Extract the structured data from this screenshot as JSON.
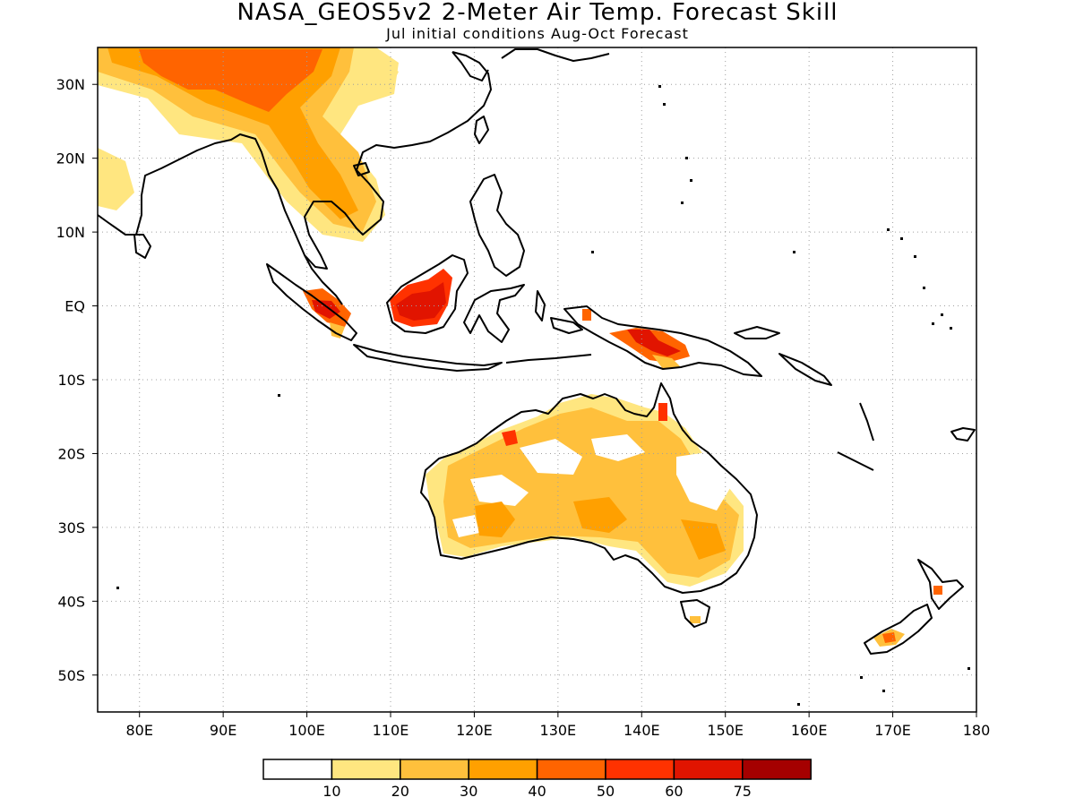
{
  "title": "NASA_GEOS5v2 2-Meter Air Temp. Forecast Skill",
  "subtitle": "Jul initial conditions  Aug-Oct Forecast",
  "map": {
    "lon_range": [
      75,
      180
    ],
    "lat_range": [
      -55,
      35
    ],
    "lon_ticks": [
      {
        "value": 80,
        "label": "80E"
      },
      {
        "value": 90,
        "label": "90E"
      },
      {
        "value": 100,
        "label": "100E"
      },
      {
        "value": 110,
        "label": "110E"
      },
      {
        "value": 120,
        "label": "120E"
      },
      {
        "value": 130,
        "label": "130E"
      },
      {
        "value": 140,
        "label": "140E"
      },
      {
        "value": 150,
        "label": "150E"
      },
      {
        "value": 160,
        "label": "160E"
      },
      {
        "value": 170,
        "label": "170E"
      },
      {
        "value": 180,
        "label": "180"
      }
    ],
    "lat_ticks": [
      {
        "value": 30,
        "label": "30N"
      },
      {
        "value": 20,
        "label": "20N"
      },
      {
        "value": 10,
        "label": "10N"
      },
      {
        "value": 0,
        "label": "EQ"
      },
      {
        "value": -10,
        "label": "10S"
      },
      {
        "value": -20,
        "label": "20S"
      },
      {
        "value": -30,
        "label": "30S"
      },
      {
        "value": -40,
        "label": "40S"
      },
      {
        "value": -50,
        "label": "50S"
      }
    ],
    "grid": "dotted"
  },
  "legend": {
    "colors": [
      "#ffffff",
      "#ffe680",
      "#ffc03c",
      "#ffa000",
      "#ff6400",
      "#ff3200",
      "#e11400",
      "#a50000"
    ],
    "labels": [
      "10",
      "20",
      "30",
      "40",
      "50",
      "60",
      "75"
    ]
  }
}
